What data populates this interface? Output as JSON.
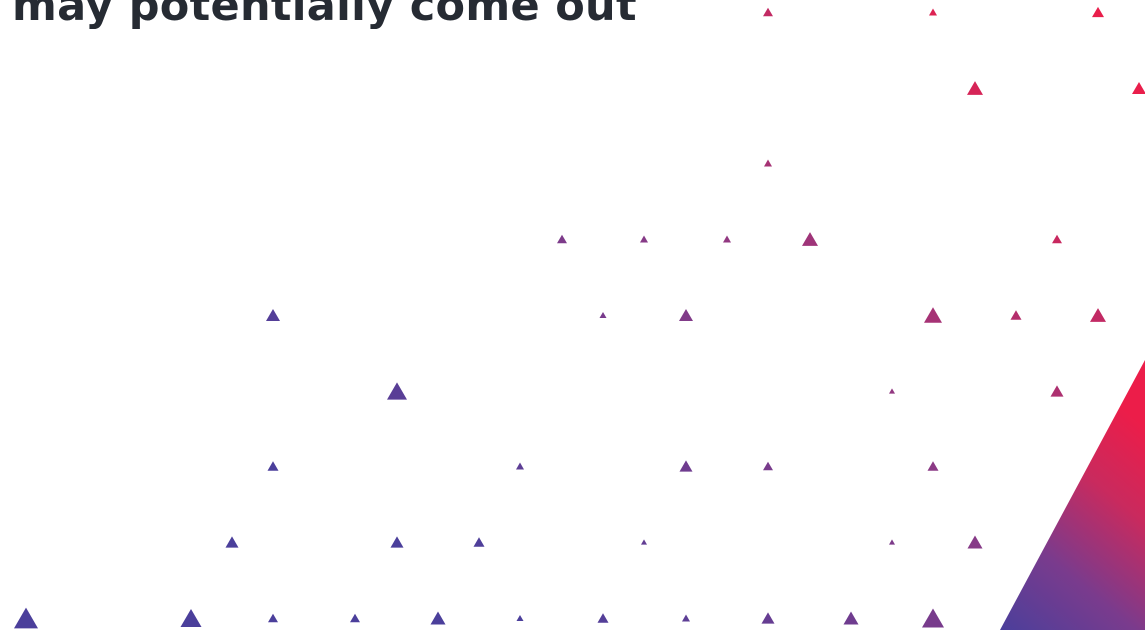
{
  "headline": {
    "text": "may potentially come out"
  },
  "colors": {
    "headline": "#262b33",
    "triangle_blue": "#4b3f9b",
    "triangle_purple": "#8a3a86",
    "triangle_red": "#e91e4b",
    "background": "#ffffff"
  },
  "decoration": {
    "pattern": "scattered-triangles",
    "corner_shape": "gradient-triangle"
  }
}
